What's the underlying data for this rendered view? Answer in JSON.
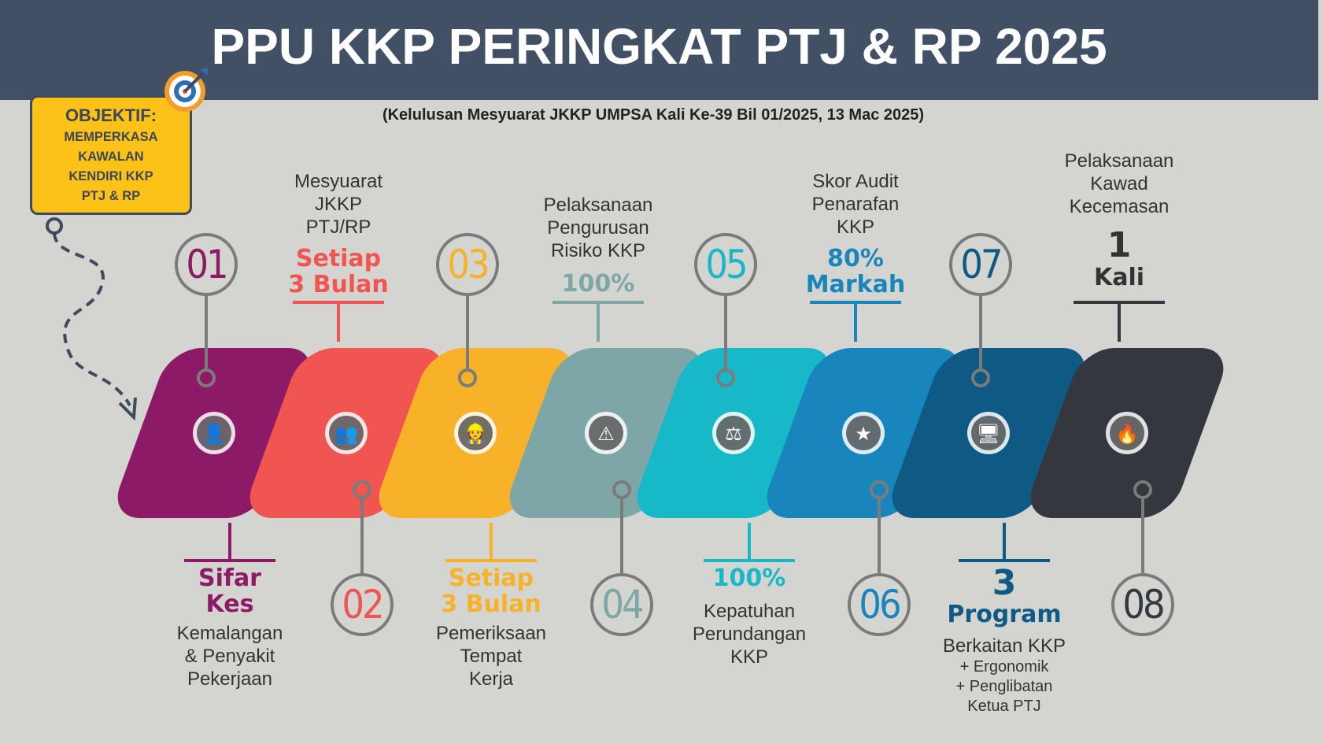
{
  "header": {
    "title": "PPU KKP PERINGKAT PTJ & RP 2025"
  },
  "subtitle": "(Kelulusan Mesyuarat JKKP UMPSA Kali Ke-39 Bil 01/2025, 13 Mac 2025)",
  "objektif": {
    "title": "OBJEKTIF:",
    "line1": "MEMPERKASA",
    "line2": "KAWALAN",
    "line3": "KENDIRI KKP",
    "line4": "PTJ & RP"
  },
  "steps": [
    {
      "num": "01",
      "color": "#8c1a66",
      "icon": "sick-person-icon",
      "highlight1": "Sifar",
      "highlight2": "Kes",
      "label1": "Kemalangan",
      "label2": "& Penyakit",
      "label3": "Pekerjaan"
    },
    {
      "num": "02",
      "color": "#f05551",
      "icon": "meeting-icon",
      "highlight1": "Setiap",
      "highlight2": "3 Bulan",
      "label1": "Mesyuarat",
      "label2": "JKKP",
      "label3": "PTJ/RP"
    },
    {
      "num": "03",
      "color": "#f7b22a",
      "icon": "inspector-icon",
      "highlight1": "Setiap",
      "highlight2": "3 Bulan",
      "label1": "Pemeriksaan",
      "label2": "Tempat",
      "label3": "Kerja"
    },
    {
      "num": "04",
      "color": "#7fa6a6",
      "icon": "risk-management-icon",
      "highlight1": "100%",
      "label1": "Pelaksanaan",
      "label2": "Pengurusan",
      "label3": "Risiko KKP"
    },
    {
      "num": "05",
      "color": "#17b8c8",
      "icon": "gavel-icon",
      "highlight1": "100%",
      "label1": "Kepatuhan",
      "label2": "Perundangan",
      "label3": "KKP"
    },
    {
      "num": "06",
      "color": "#1985bd",
      "icon": "rating-thumbs-up-icon",
      "highlight1": "80%",
      "highlight2": "Markah",
      "label1": "Skor Audit",
      "label2": "Penarafan",
      "label3": "KKP"
    },
    {
      "num": "07",
      "color": "#0e5a85",
      "icon": "computer-program-icon",
      "highlight1": "3",
      "highlight2": "Program",
      "label1": "Berkaitan KKP",
      "label2": "+ Ergonomik",
      "label3": "+ Penglibatan",
      "label4": "Ketua PTJ"
    },
    {
      "num": "08",
      "color": "#34373e",
      "icon": "fire-drill-icon",
      "highlight1": "1",
      "highlight2": "Kali",
      "label1": "Pelaksanaan",
      "label2": "Kawad",
      "label3": "Kecemasan"
    }
  ],
  "icons": {
    "target": "target-icon",
    "arrow": "dashed-arrow-icon"
  }
}
